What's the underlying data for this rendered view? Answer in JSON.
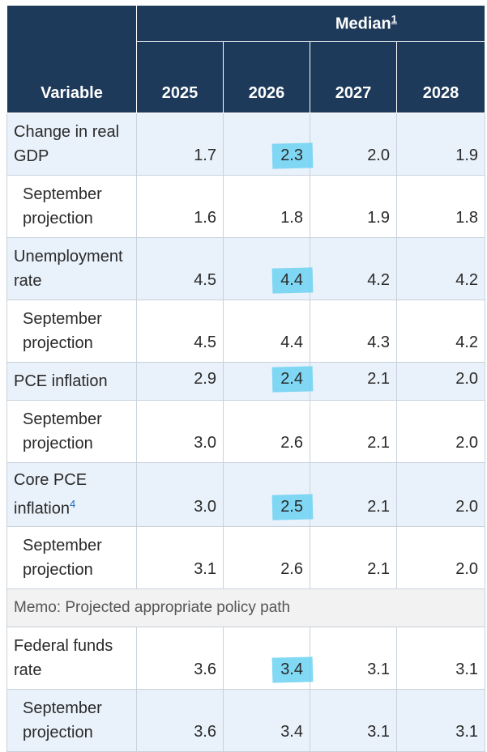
{
  "header": {
    "variable": "Variable",
    "median": "Median",
    "median_footnote": "1",
    "years": [
      "2025",
      "2026",
      "2027",
      "2028"
    ]
  },
  "rows": [
    {
      "label": "Change in real GDP",
      "values": [
        "1.7",
        "2.3",
        "2.0",
        "1.9"
      ],
      "type": "main"
    },
    {
      "label": "September projection",
      "values": [
        "1.6",
        "1.8",
        "1.9",
        "1.8"
      ],
      "type": "sub"
    },
    {
      "label": "Unemployment rate",
      "values": [
        "4.5",
        "4.4",
        "4.2",
        "4.2"
      ],
      "type": "main"
    },
    {
      "label": "September projection",
      "values": [
        "4.5",
        "4.4",
        "4.3",
        "4.2"
      ],
      "type": "sub"
    },
    {
      "label": "PCE inflation",
      "values": [
        "2.9",
        "2.4",
        "2.1",
        "2.0"
      ],
      "type": "main"
    },
    {
      "label": "September projection",
      "values": [
        "3.0",
        "2.6",
        "2.1",
        "2.0"
      ],
      "type": "sub"
    },
    {
      "label": "Core PCE inflation",
      "footnote": "4",
      "values": [
        "3.0",
        "2.5",
        "2.1",
        "2.0"
      ],
      "type": "main"
    },
    {
      "label": "September projection",
      "values": [
        "3.1",
        "2.6",
        "2.1",
        "2.0"
      ],
      "type": "sub"
    }
  ],
  "memo": "Memo: Projected appropriate policy path",
  "policy_rows": [
    {
      "label": "Federal funds rate",
      "values": [
        "3.6",
        "3.4",
        "3.1",
        "3.1"
      ],
      "type": "main"
    },
    {
      "label": "September projection",
      "values": [
        "3.6",
        "3.4",
        "3.1",
        "3.1"
      ],
      "type": "sub"
    }
  ],
  "highlight_color": "#6cd2f2"
}
